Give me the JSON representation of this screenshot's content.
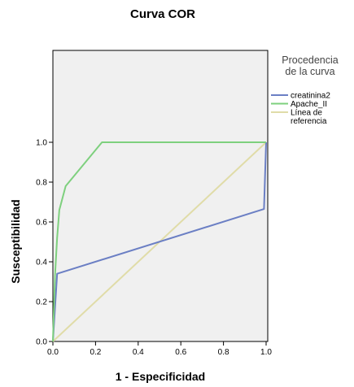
{
  "chart_data": {
    "type": "line",
    "title": "Curva COR",
    "xlabel": "1 - Especificidad",
    "ylabel": "Susceptibilidad",
    "xlim": [
      0,
      1
    ],
    "ylim": [
      0,
      1
    ],
    "x_ticks": [
      "0.0",
      "0.2",
      "0.4",
      "0.6",
      "0.8",
      "1.0"
    ],
    "y_ticks": [
      "0.0",
      "0.2",
      "0.4",
      "0.6",
      "0.8",
      "1.0"
    ],
    "grid": false,
    "plot_background": "#f0f0f0",
    "legend": {
      "title_lines": [
        "Procedencia",
        "de la curva"
      ],
      "placement": "right"
    },
    "series": [
      {
        "name": "creatinina2",
        "color": "#6b7fc4",
        "points": [
          [
            0,
            0
          ],
          [
            0.02,
            0.34
          ],
          [
            0.99,
            0.665
          ],
          [
            1.0,
            1.0
          ]
        ]
      },
      {
        "name": "Apache_II",
        "color": "#7ed07e",
        "points": [
          [
            0,
            0
          ],
          [
            0.01,
            0.33
          ],
          [
            0.02,
            0.52
          ],
          [
            0.03,
            0.66
          ],
          [
            0.06,
            0.78
          ],
          [
            0.23,
            1.0
          ],
          [
            1.0,
            1.0
          ]
        ]
      },
      {
        "name_lines": [
          "Línea de",
          "referencia"
        ],
        "color": "#e0dca8",
        "points": [
          [
            0,
            0
          ],
          [
            1,
            1
          ]
        ]
      }
    ]
  }
}
